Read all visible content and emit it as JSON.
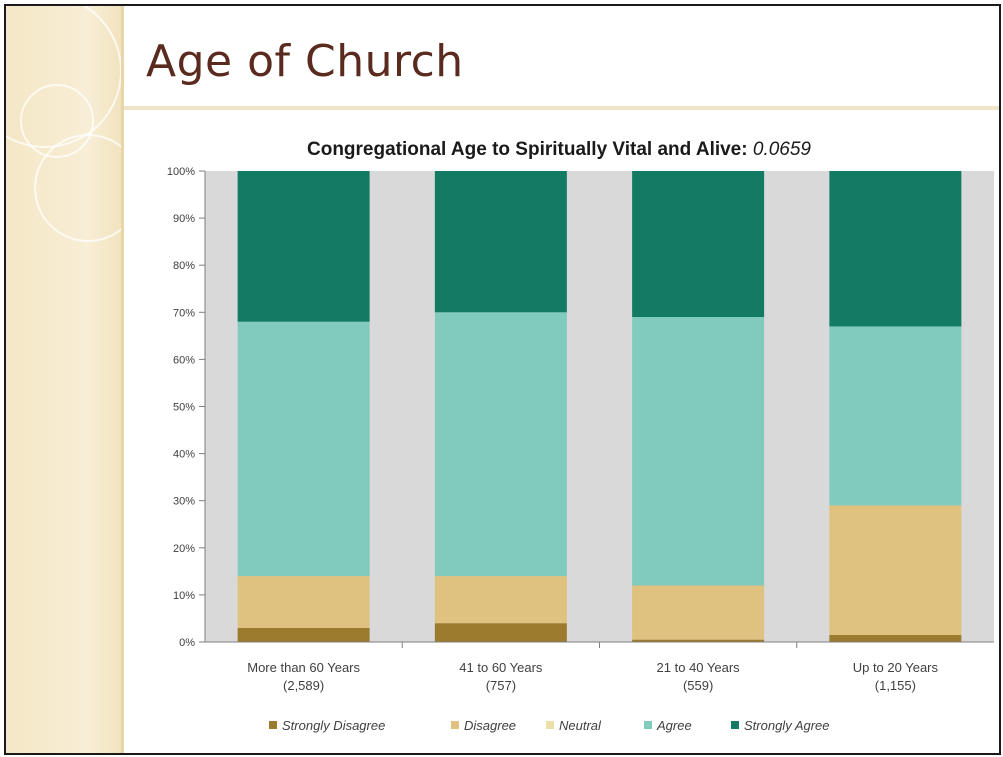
{
  "slide": {
    "title": "Age of Church"
  },
  "colors": {
    "strongly_disagree": "#9c7a2e",
    "disagree": "#dfc180",
    "neutral": "#eedfa8",
    "agree": "#80cbbe",
    "strongly_agree": "#137b64",
    "plot_background": "#d9d9d9",
    "title_color": "#5a2a1e",
    "side_band": "#f4e7c6"
  },
  "chart_data": {
    "type": "bar",
    "stacked": true,
    "percent": true,
    "title": "Congregational  Age to Spiritually Vital and Alive:",
    "title_value": "0.0659",
    "categories": [
      [
        "More than 60 Years",
        "(2,589)"
      ],
      [
        "41 to 60 Years",
        "(757)"
      ],
      [
        "21 to 40 Years",
        "(559)"
      ],
      [
        "Up to 20 Years",
        "(1,155)"
      ]
    ],
    "ylim": [
      0,
      100
    ],
    "yticks": [
      0,
      10,
      20,
      30,
      40,
      50,
      60,
      70,
      80,
      90,
      100
    ],
    "ytick_labels": [
      "0%",
      "10%",
      "20%",
      "30%",
      "40%",
      "50%",
      "60%",
      "70%",
      "80%",
      "90%",
      "100%"
    ],
    "series": [
      {
        "name": "Strongly Disagree",
        "color": "#9c7a2e",
        "values": [
          3,
          4,
          0.5,
          1.5
        ]
      },
      {
        "name": "Disagree",
        "color": "#dfc180",
        "values": [
          11,
          10,
          11.5,
          27.5
        ]
      },
      {
        "name": "Neutral",
        "color": "#eedfa8",
        "values": [
          0,
          0,
          0,
          0
        ]
      },
      {
        "name": "Agree",
        "color": "#80cbbe",
        "values": [
          54,
          56,
          57,
          38
        ]
      },
      {
        "name": "Strongly Agree",
        "color": "#137b64",
        "values": [
          32,
          30,
          31,
          33
        ]
      }
    ],
    "legend_position": "bottom",
    "grid": false
  }
}
